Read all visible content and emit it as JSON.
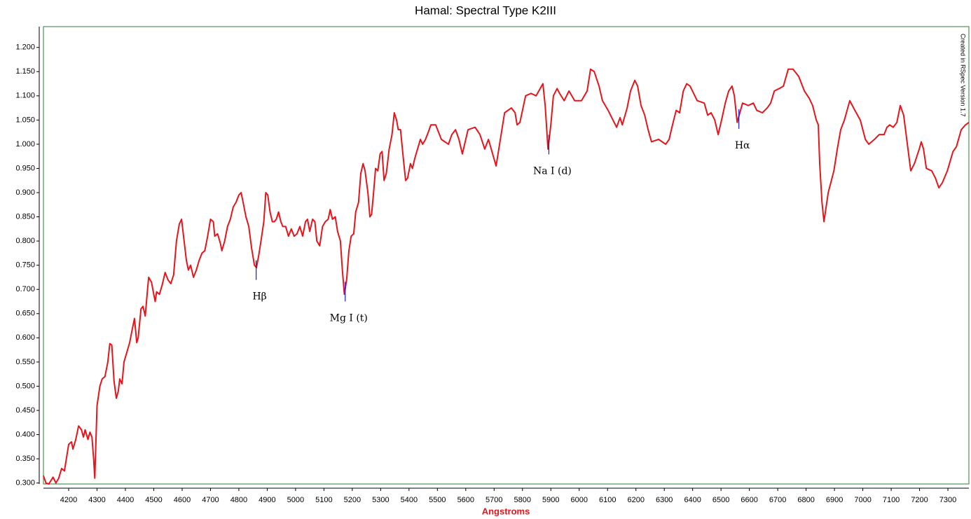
{
  "chart_data": {
    "type": "line",
    "title": "Hamal: Spectral Type K2III",
    "x_label": "Angstroms",
    "note": "Created in RSpec Version 1.7",
    "xlim": [
      4111,
      7374
    ],
    "ylim": [
      0.298,
      1.243
    ],
    "xticks": [
      4200,
      4300,
      4400,
      4500,
      4600,
      4700,
      4800,
      4900,
      5000,
      5100,
      5200,
      5300,
      5400,
      5500,
      5600,
      5700,
      5800,
      5900,
      6000,
      6100,
      6200,
      6300,
      6400,
      6500,
      6600,
      6700,
      6800,
      6900,
      7000,
      7100,
      7200,
      7300
    ],
    "yticks": [
      {
        "value": 0.3,
        "label": "0.300"
      },
      {
        "value": 0.35,
        "label": "0.350"
      },
      {
        "value": 0.4,
        "label": "0.400"
      },
      {
        "value": 0.45,
        "label": "0.450"
      },
      {
        "value": 0.5,
        "label": "0.500"
      },
      {
        "value": 0.55,
        "label": "0.550"
      },
      {
        "value": 0.6,
        "label": "0.600"
      },
      {
        "value": 0.65,
        "label": "0.650"
      },
      {
        "value": 0.7,
        "label": "0.700"
      },
      {
        "value": 0.75,
        "label": "0.750"
      },
      {
        "value": 0.8,
        "label": "0.800"
      },
      {
        "value": 0.85,
        "label": "0.850"
      },
      {
        "value": 0.9,
        "label": "0.900"
      },
      {
        "value": 0.95,
        "label": "0.950"
      },
      {
        "value": 1.0,
        "label": "1.000"
      },
      {
        "value": 1.05,
        "label": "1.050"
      },
      {
        "value": 1.1,
        "label": "1.100"
      },
      {
        "value": 1.15,
        "label": "1.150"
      },
      {
        "value": 1.2,
        "label": "1.200"
      }
    ],
    "annotations": [
      {
        "text": "Hβ",
        "x": 4861
      },
      {
        "text": "Mg I (t)",
        "x": 5175
      },
      {
        "text": "Na I (d)",
        "x": 5893
      },
      {
        "text": "Hα",
        "x": 6563
      }
    ],
    "annotation_color": "#1a1adb",
    "series": [
      {
        "color": "#e8141b",
        "x": [
          4111,
          4120,
          4130,
          4145,
          4155,
          4165,
          4175,
          4185,
          4200,
          4210,
          4215,
          4225,
          4235,
          4245,
          4252,
          4258,
          4268,
          4275,
          4282,
          4288,
          4292,
          4300,
          4310,
          4318,
          4328,
          4338,
          4345,
          4352,
          4360,
          4368,
          4375,
          4380,
          4388,
          4395,
          4405,
          4415,
          4425,
          4432,
          4440,
          4445,
          4455,
          4462,
          4470,
          4478,
          4482,
          4492,
          4500,
          4505,
          4510,
          4520,
          4530,
          4540,
          4550,
          4560,
          4570,
          4580,
          4590,
          4598,
          4605,
          4615,
          4622,
          4630,
          4640,
          4650,
          4660,
          4670,
          4680,
          4690,
          4700,
          4710,
          4715,
          4725,
          4735,
          4740,
          4750,
          4760,
          4770,
          4780,
          4790,
          4800,
          4808,
          4815,
          4825,
          4835,
          4845,
          4855,
          4862,
          4870,
          4878,
          4888,
          4895,
          4902,
          4910,
          4918,
          4925,
          4932,
          4940,
          4948,
          4955,
          4965,
          4975,
          4985,
          4995,
          5005,
          5015,
          5025,
          5035,
          5042,
          5050,
          5060,
          5068,
          5075,
          5085,
          5095,
          5105,
          5115,
          5122,
          5130,
          5140,
          5148,
          5158,
          5165,
          5172,
          5180,
          5188,
          5196,
          5205,
          5212,
          5222,
          5230,
          5238,
          5245,
          5255,
          5262,
          5268,
          5275,
          5282,
          5290,
          5298,
          5305,
          5312,
          5320,
          5330,
          5340,
          5348,
          5356,
          5362,
          5370,
          5380,
          5388,
          5395,
          5405,
          5412,
          5420,
          5430,
          5440,
          5448,
          5458,
          5468,
          5477,
          5494,
          5514,
          5539,
          5551,
          5564,
          5576,
          5588,
          5608,
          5633,
          5650,
          5667,
          5680,
          5707,
          5737,
          5761,
          5774,
          5781,
          5791,
          5811,
          5830,
          5848,
          5872,
          5880,
          5890,
          5900,
          5909,
          5922,
          5931,
          5947,
          5964,
          5984,
          6008,
          6028,
          6040,
          6053,
          6070,
          6082,
          6102,
          6119,
          6132,
          6144,
          6152,
          6169,
          6181,
          6196,
          6206,
          6218,
          6231,
          6243,
          6255,
          6280,
          6305,
          6317,
          6329,
          6342,
          6354,
          6367,
          6379,
          6391,
          6416,
          6441,
          6453,
          6465,
          6478,
          6490,
          6502,
          6515,
          6527,
          6539,
          6547,
          6557,
          6564,
          6576,
          6596,
          6614,
          6626,
          6646,
          6663,
          6675,
          6688,
          6705,
          6720,
          6737,
          6754,
          6774,
          6794,
          6811,
          6823,
          6836,
          6843,
          6848,
          6856,
          6863,
          6878,
          6898,
          6910,
          6922,
          6935,
          6954,
          6972,
          6991,
          7009,
          7021,
          7041,
          7058,
          7075,
          7085,
          7095,
          7107,
          7120,
          7132,
          7144,
          7157,
          7169,
          7182,
          7199,
          7206,
          7214,
          7224,
          7243,
          7256,
          7268,
          7280,
          7298,
          7318,
          7330,
          7347,
          7362,
          7374
        ],
        "values": [
          0.315,
          0.3,
          0.298,
          0.312,
          0.3,
          0.31,
          0.33,
          0.325,
          0.38,
          0.385,
          0.37,
          0.39,
          0.418,
          0.41,
          0.395,
          0.41,
          0.39,
          0.405,
          0.395,
          0.35,
          0.31,
          0.46,
          0.5,
          0.515,
          0.52,
          0.55,
          0.588,
          0.585,
          0.51,
          0.475,
          0.49,
          0.515,
          0.505,
          0.55,
          0.57,
          0.59,
          0.62,
          0.64,
          0.59,
          0.6,
          0.66,
          0.665,
          0.645,
          0.7,
          0.725,
          0.715,
          0.69,
          0.675,
          0.695,
          0.69,
          0.71,
          0.735,
          0.72,
          0.712,
          0.73,
          0.8,
          0.835,
          0.845,
          0.81,
          0.76,
          0.74,
          0.75,
          0.725,
          0.74,
          0.76,
          0.775,
          0.78,
          0.81,
          0.845,
          0.84,
          0.81,
          0.815,
          0.795,
          0.78,
          0.8,
          0.83,
          0.845,
          0.87,
          0.88,
          0.895,
          0.9,
          0.88,
          0.85,
          0.83,
          0.785,
          0.75,
          0.745,
          0.77,
          0.8,
          0.84,
          0.9,
          0.895,
          0.86,
          0.84,
          0.84,
          0.845,
          0.86,
          0.84,
          0.83,
          0.83,
          0.81,
          0.825,
          0.81,
          0.815,
          0.83,
          0.81,
          0.84,
          0.845,
          0.82,
          0.845,
          0.84,
          0.8,
          0.79,
          0.83,
          0.84,
          0.845,
          0.865,
          0.845,
          0.85,
          0.82,
          0.8,
          0.74,
          0.69,
          0.72,
          0.78,
          0.81,
          0.815,
          0.86,
          0.88,
          0.94,
          0.96,
          0.945,
          0.9,
          0.85,
          0.855,
          0.9,
          0.95,
          0.945,
          0.98,
          0.985,
          0.925,
          0.94,
          0.99,
          1.02,
          1.065,
          1.05,
          1.03,
          1.03,
          0.97,
          0.925,
          0.93,
          0.96,
          0.95,
          0.97,
          0.99,
          1.01,
          1.0,
          1.01,
          1.025,
          1.04,
          1.04,
          1.01,
          1.0,
          1.02,
          1.03,
          1.01,
          0.98,
          1.03,
          1.035,
          1.02,
          0.99,
          1.01,
          0.955,
          1.065,
          1.075,
          1.065,
          1.04,
          1.045,
          1.1,
          1.105,
          1.1,
          1.125,
          1.08,
          0.99,
          1.04,
          1.1,
          1.115,
          1.105,
          1.09,
          1.11,
          1.09,
          1.09,
          1.11,
          1.155,
          1.15,
          1.12,
          1.09,
          1.07,
          1.05,
          1.035,
          1.055,
          1.04,
          1.075,
          1.11,
          1.132,
          1.12,
          1.08,
          1.06,
          1.03,
          1.005,
          1.01,
          1.0,
          1.01,
          1.04,
          1.07,
          1.065,
          1.11,
          1.125,
          1.12,
          1.09,
          1.085,
          1.06,
          1.065,
          1.05,
          1.02,
          1.05,
          1.085,
          1.11,
          1.12,
          1.1,
          1.045,
          1.06,
          1.085,
          1.08,
          1.085,
          1.07,
          1.065,
          1.075,
          1.085,
          1.11,
          1.115,
          1.12,
          1.155,
          1.155,
          1.14,
          1.11,
          1.095,
          1.08,
          1.05,
          1.04,
          0.96,
          0.88,
          0.84,
          0.9,
          0.945,
          0.99,
          1.03,
          1.05,
          1.09,
          1.07,
          1.05,
          1.01,
          1.0,
          1.01,
          1.02,
          1.02,
          1.035,
          1.04,
          1.035,
          1.045,
          1.08,
          1.06,
          1.0,
          0.945,
          0.96,
          0.99,
          1.005,
          0.99,
          0.95,
          0.945,
          0.93,
          0.91,
          0.92,
          0.945,
          0.985,
          0.995,
          1.03,
          1.04,
          1.045
        ]
      }
    ],
    "frame_color": "#2e7d32"
  }
}
